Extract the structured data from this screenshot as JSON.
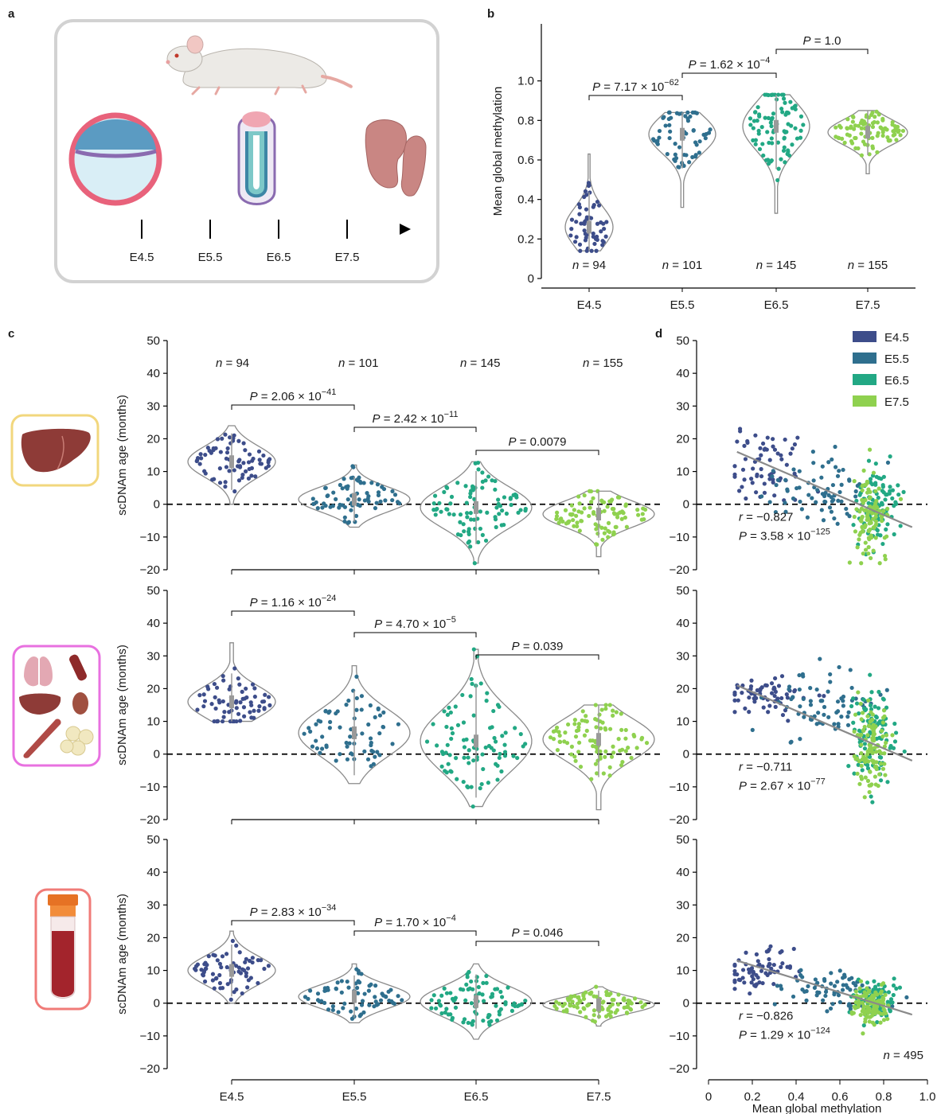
{
  "panel_labels": [
    "a",
    "b",
    "c",
    "d"
  ],
  "panel_a": {
    "timeline_labels": [
      "E4.5",
      "E5.5",
      "E6.5",
      "E7.5"
    ],
    "icons": [
      "mouse-icon",
      "blastocyst-icon",
      "egg-cylinder-embryo-icon",
      "gastrulating-embryo-icon"
    ]
  },
  "colors": {
    "E4.5": "#3d4d8a",
    "E5.5": "#2f6f8e",
    "E6.5": "#22a884",
    "E7.5": "#8fd14f"
  },
  "chart_data": [
    {
      "id": "b",
      "type": "violin",
      "ylabel": "Mean global methylation",
      "xlabel": "",
      "categories": [
        "E4.5",
        "E5.5",
        "E6.5",
        "E7.5"
      ],
      "ylim": [
        0,
        1.2
      ],
      "yticks": [
        "0",
        "0.2",
        "0.4",
        "0.6",
        "0.8",
        "1.0"
      ],
      "n_labels": [
        "n = 94",
        "n = 101",
        "n = 145",
        "n = 155"
      ],
      "n": [
        94,
        101,
        145,
        155
      ],
      "median": [
        0.26,
        0.73,
        0.77,
        0.74
      ],
      "range": [
        [
          0.14,
          0.63
        ],
        [
          0.36,
          0.84
        ],
        [
          0.33,
          0.93
        ],
        [
          0.53,
          0.85
        ]
      ],
      "comparisons": [
        {
          "pair": [
            "E4.5",
            "E5.5"
          ],
          "label": "P = 7.17 × 10",
          "exp": "−62"
        },
        {
          "pair": [
            "E5.5",
            "E6.5"
          ],
          "label": "P = 1.62 × 10",
          "exp": "−4"
        },
        {
          "pair": [
            "E6.5",
            "E7.5"
          ],
          "label": "P = 1.0",
          "exp": ""
        }
      ]
    },
    {
      "id": "c1",
      "type": "violin",
      "tissue": "liver",
      "ylabel": "scDNAm age (months)",
      "categories": [
        "E4.5",
        "E5.5",
        "E6.5",
        "E7.5"
      ],
      "ylim": [
        -20,
        50
      ],
      "yticks": [
        "−20",
        "−10",
        "0",
        "10",
        "20",
        "30",
        "40",
        "50"
      ],
      "n_labels": [
        "n = 94",
        "n = 101",
        "n = 145",
        "n = 155"
      ],
      "median": [
        13,
        1.5,
        -1,
        -3
      ],
      "range": [
        [
          0,
          24
        ],
        [
          -7,
          12
        ],
        [
          -18,
          13
        ],
        [
          -16,
          4
        ]
      ],
      "comparisons": [
        {
          "pair": [
            "E4.5",
            "E5.5"
          ],
          "label": "P = 2.06 × 10",
          "exp": "−41"
        },
        {
          "pair": [
            "E5.5",
            "E6.5"
          ],
          "label": "P = 2.42 × 10",
          "exp": "−11"
        },
        {
          "pair": [
            "E6.5",
            "E7.5"
          ],
          "label": "P = 0.0079",
          "exp": ""
        }
      ]
    },
    {
      "id": "c2",
      "type": "violin",
      "tissue": "multi-tissue",
      "ylabel": "scDNAm age (months)",
      "categories": [
        "E4.5",
        "E5.5",
        "E6.5",
        "E7.5"
      ],
      "ylim": [
        -20,
        50
      ],
      "yticks": [
        "−20",
        "−10",
        "0",
        "10",
        "20",
        "30",
        "40",
        "50"
      ],
      "median": [
        16,
        6.5,
        4,
        4.5
      ],
      "range": [
        [
          10,
          34
        ],
        [
          -9,
          27
        ],
        [
          -16,
          32
        ],
        [
          -17,
          15
        ]
      ],
      "comparisons": [
        {
          "pair": [
            "E4.5",
            "E5.5"
          ],
          "label": "P = 1.16 × 10",
          "exp": "−24"
        },
        {
          "pair": [
            "E5.5",
            "E6.5"
          ],
          "label": "P = 4.70 × 10",
          "exp": "−5"
        },
        {
          "pair": [
            "E6.5",
            "E7.5"
          ],
          "label": "P = 0.039",
          "exp": ""
        }
      ]
    },
    {
      "id": "c3",
      "type": "violin",
      "tissue": "blood",
      "ylabel": "scDNAm age (months)",
      "categories": [
        "E4.5",
        "E5.5",
        "E6.5",
        "E7.5"
      ],
      "ylim": [
        -20,
        50
      ],
      "yticks": [
        "−20",
        "−10",
        "0",
        "10",
        "20",
        "30",
        "40",
        "50"
      ],
      "median": [
        10,
        2,
        0.5,
        -0.5
      ],
      "range": [
        [
          0,
          22
        ],
        [
          -6,
          12
        ],
        [
          -11,
          12
        ],
        [
          -7,
          5
        ]
      ],
      "comparisons": [
        {
          "pair": [
            "E4.5",
            "E5.5"
          ],
          "label": "P = 2.83 × 10",
          "exp": "−34"
        },
        {
          "pair": [
            "E5.5",
            "E6.5"
          ],
          "label": "P = 1.70 × 10",
          "exp": "−4"
        },
        {
          "pair": [
            "E6.5",
            "E7.5"
          ],
          "label": "P = 0.046",
          "exp": ""
        }
      ]
    },
    {
      "id": "d1",
      "type": "scatter",
      "ylim": [
        -20,
        50
      ],
      "xlim": [
        0,
        1.0
      ],
      "yticks": [
        "−20",
        "−10",
        "0",
        "10",
        "20",
        "30",
        "40",
        "50"
      ],
      "legend": [
        "E4.5",
        "E5.5",
        "E6.5",
        "E7.5"
      ],
      "legend_position": "top-right",
      "r_text": "r = −0.827",
      "p_text": "P = 3.58 × 10",
      "p_exp": "−125",
      "fit": {
        "x": [
          0.13,
          0.93
        ],
        "y": [
          16,
          -7
        ]
      }
    },
    {
      "id": "d2",
      "type": "scatter",
      "ylim": [
        -20,
        50
      ],
      "xlim": [
        0,
        1.0
      ],
      "yticks": [
        "−20",
        "−10",
        "0",
        "10",
        "20",
        "30",
        "40",
        "50"
      ],
      "r_text": "r = −0.711",
      "p_text": "P = 2.67 × 10",
      "p_exp": "−77",
      "fit": {
        "x": [
          0.13,
          0.93
        ],
        "y": [
          21,
          -2
        ]
      }
    },
    {
      "id": "d3",
      "type": "scatter",
      "ylim": [
        -20,
        50
      ],
      "xlim": [
        0,
        1.0
      ],
      "yticks": [
        "−20",
        "−10",
        "0",
        "10",
        "20",
        "30",
        "40",
        "50"
      ],
      "xticks": [
        "0",
        "0.2",
        "0.4",
        "0.6",
        "0.8",
        "1.0"
      ],
      "xlabel": "Mean global methylation",
      "r_text": "r = −0.826",
      "p_text": "P = 1.29 × 10",
      "p_exp": "−124",
      "n_label": "n = 495",
      "fit": {
        "x": [
          0.13,
          0.93
        ],
        "y": [
          13,
          -3.5
        ]
      }
    }
  ],
  "tissue_icons": [
    "liver-icon",
    "multi-tissue-icon",
    "blood-tube-icon"
  ]
}
